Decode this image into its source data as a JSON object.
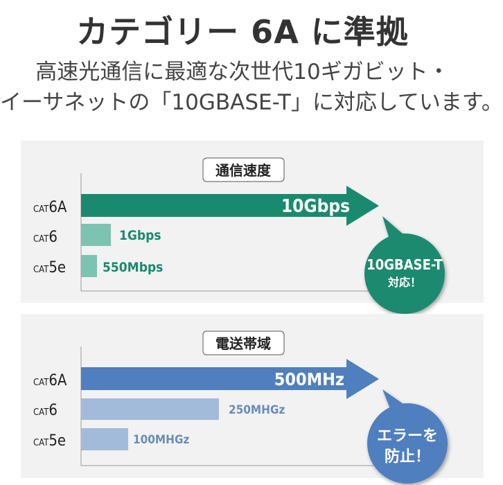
{
  "title": "カテゴリー 6A に準拠",
  "subtitle_line1": "高速光通信に最適な次世代10ギガビット・",
  "subtitle_line2": "イーサネットの「10GBASE-T」に対応しています。",
  "colors": {
    "speed_main": "#1a8a6e",
    "speed_light": "#7dc3b1",
    "band_main": "#4f7fbe",
    "band_light": "#a3bbdb",
    "panel_bg": "#f2f2f2"
  },
  "speed": {
    "heading": "通信速度",
    "rows": [
      {
        "prefix": "CAT",
        "suffix": "6A",
        "value": "10Gbps"
      },
      {
        "prefix": "CAT",
        "suffix": "6",
        "value": "1Gbps"
      },
      {
        "prefix": "CAT",
        "suffix": "5e",
        "value": "550Mbps"
      }
    ],
    "bubble_line1": "10GBASE-T",
    "bubble_line2": "対応！"
  },
  "bandwidth": {
    "heading": "電送帯域",
    "rows": [
      {
        "prefix": "CAT",
        "suffix": "6A",
        "value": "500MHz"
      },
      {
        "prefix": "CAT",
        "suffix": "6",
        "value": "250MHGz"
      },
      {
        "prefix": "CAT",
        "suffix": "5e",
        "value": "100MHGz"
      }
    ],
    "bubble_line1": "エラーを",
    "bubble_line2": "防止！"
  }
}
